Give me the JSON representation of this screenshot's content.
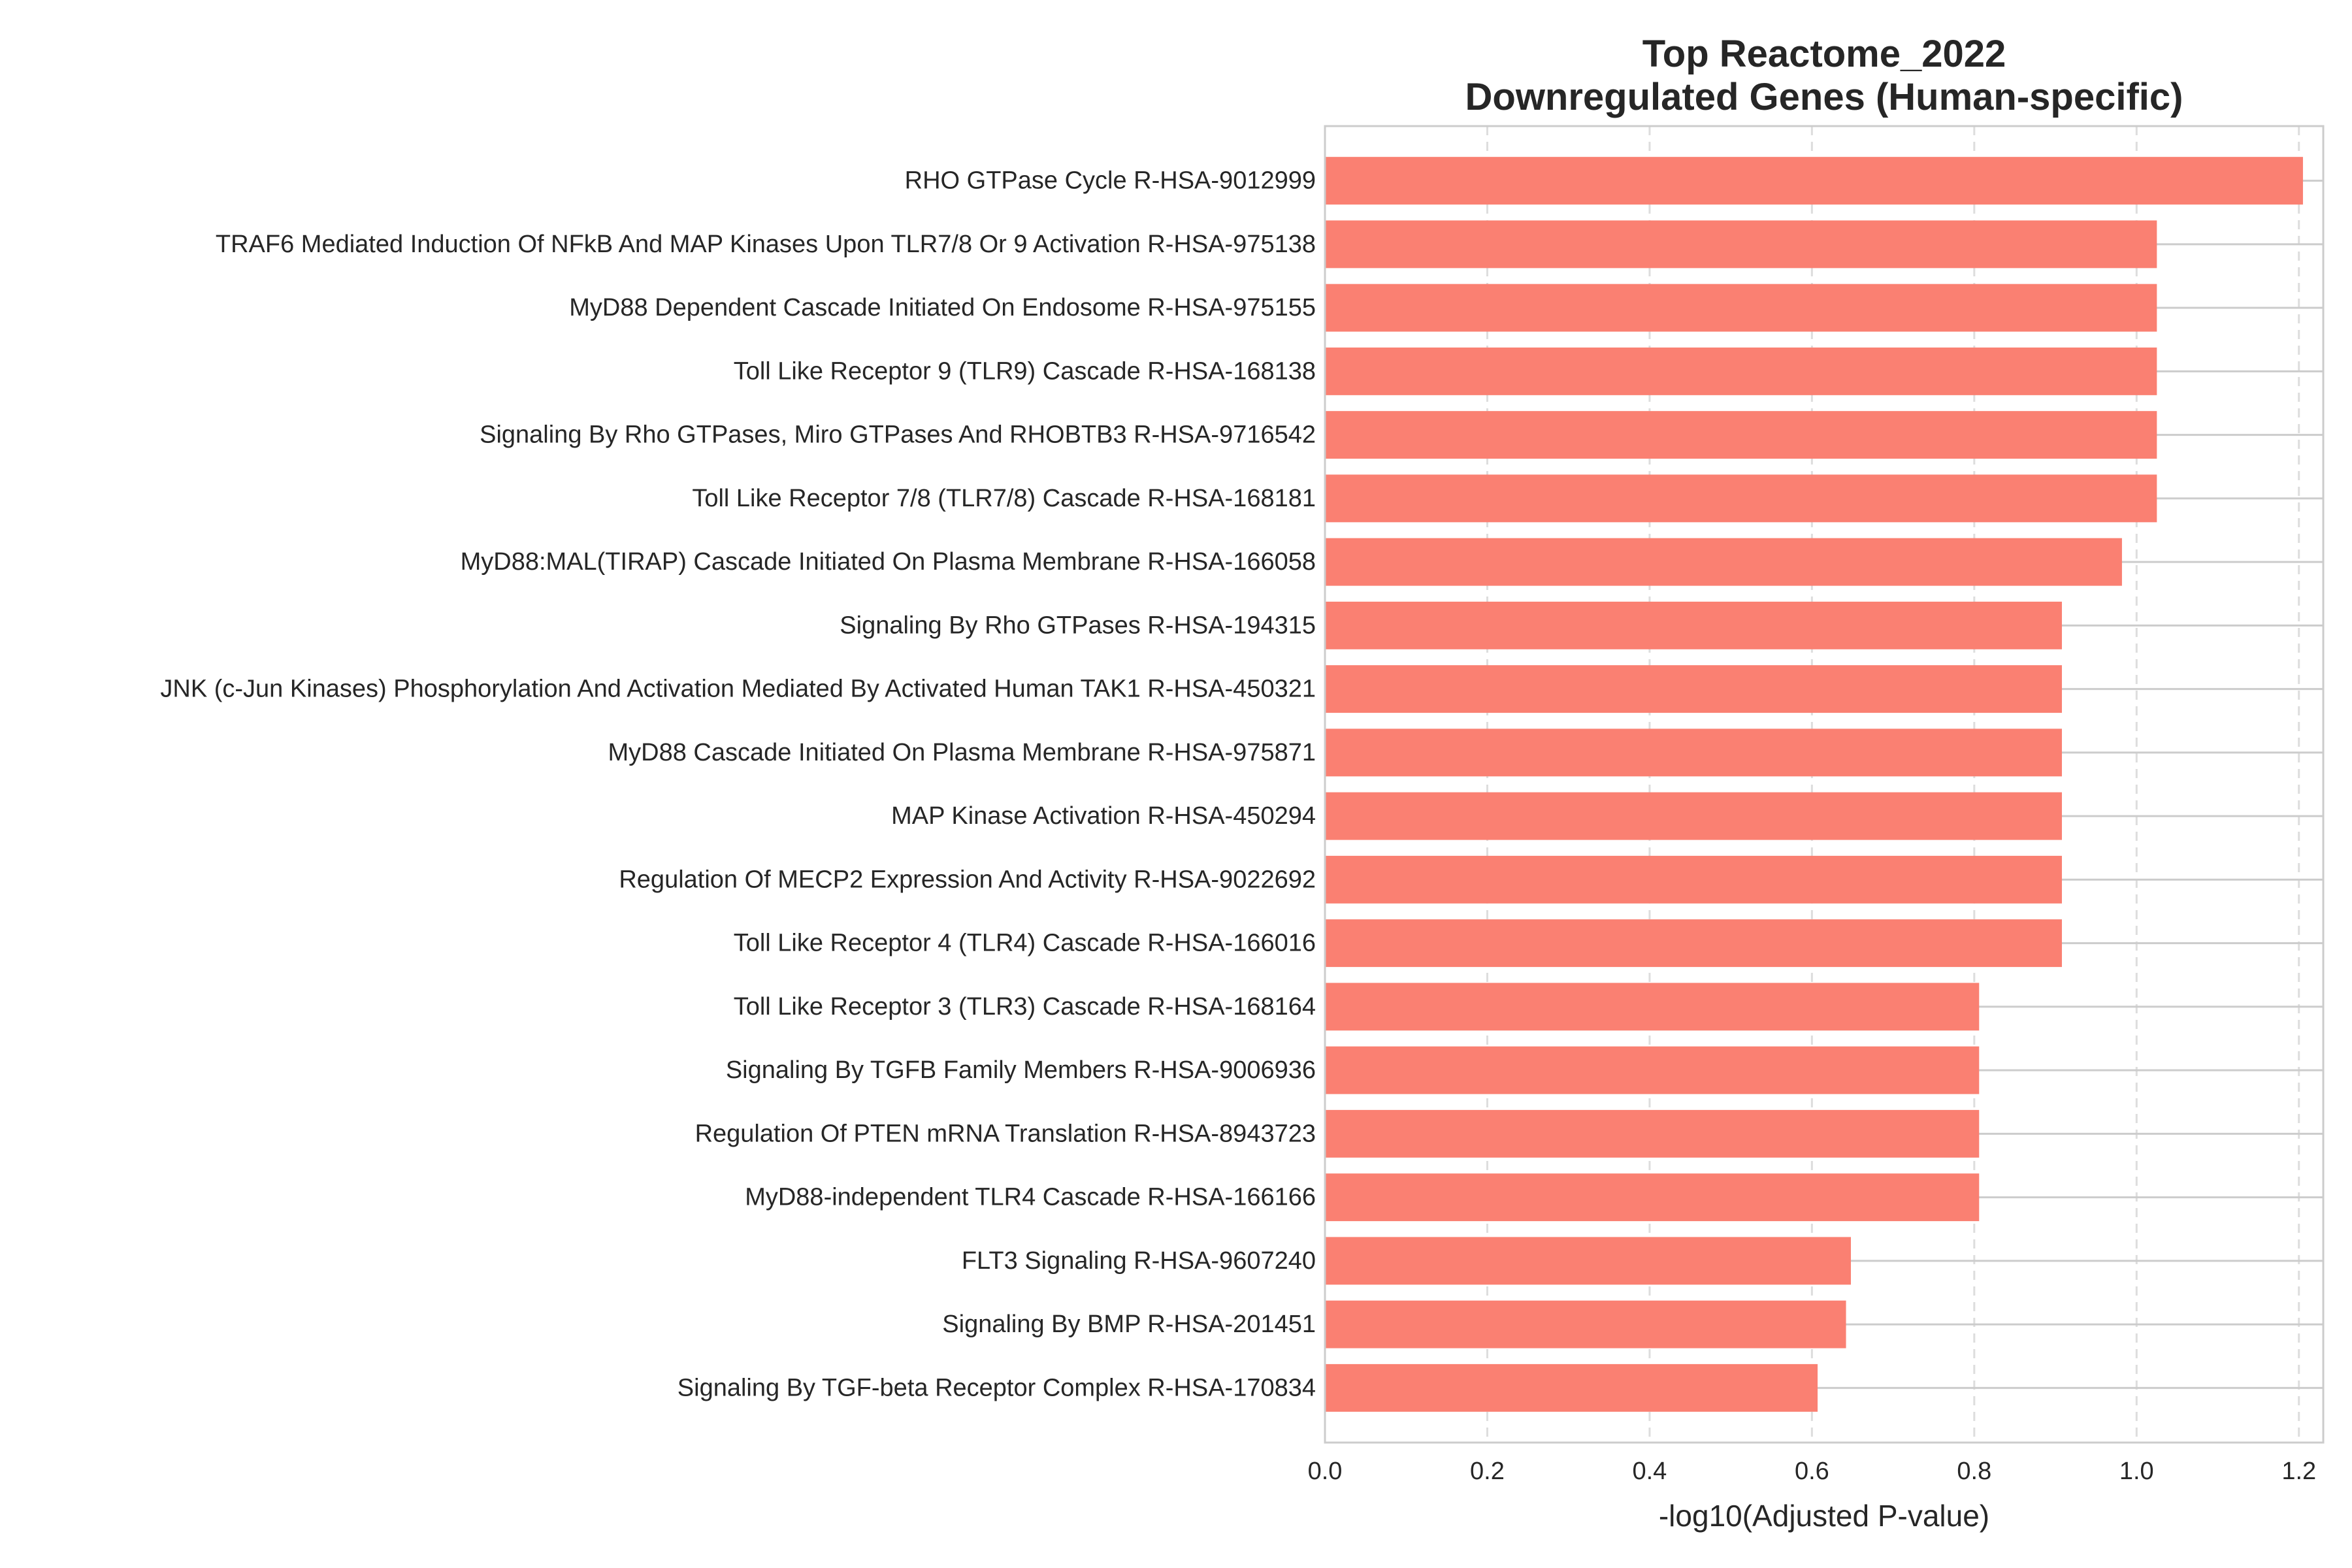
{
  "chart_data": {
    "type": "bar",
    "orientation": "horizontal",
    "title": "Top Reactome_2022\nDownregulated Genes (Human-specific)",
    "xlabel": "-log10(Adjusted P-value)",
    "ylabel": "",
    "xlim": [
      0,
      1.23
    ],
    "xticks": [
      "0.0",
      "0.2",
      "0.4",
      "0.6",
      "0.8",
      "1.0",
      "1.2"
    ],
    "grid": true,
    "bar_color": "#FA8072",
    "categories": [
      "RHO GTPase Cycle R-HSA-9012999",
      "TRAF6 Mediated Induction Of NFkB And MAP Kinases Upon TLR7/8 Or 9 Activation R-HSA-975138",
      "MyD88 Dependent Cascade Initiated On Endosome R-HSA-975155",
      "Toll Like Receptor 9 (TLR9) Cascade R-HSA-168138",
      "Signaling By Rho GTPases, Miro GTPases And RHOBTB3 R-HSA-9716542",
      "Toll Like Receptor 7/8 (TLR7/8) Cascade R-HSA-168181",
      "MyD88:MAL(TIRAP) Cascade Initiated On Plasma Membrane R-HSA-166058",
      "Signaling By Rho GTPases R-HSA-194315",
      "JNK (c-Jun Kinases) Phosphorylation And Activation Mediated By Activated Human TAK1 R-HSA-450321",
      "MyD88 Cascade Initiated On Plasma Membrane R-HSA-975871",
      "MAP Kinase Activation R-HSA-450294",
      "Regulation Of MECP2 Expression And Activity R-HSA-9022692",
      "Toll Like Receptor 4 (TLR4) Cascade R-HSA-166016",
      "Toll Like Receptor 3 (TLR3) Cascade R-HSA-168164",
      "Signaling By TGFB Family Members R-HSA-9006936",
      "Regulation Of PTEN mRNA Translation R-HSA-8943723",
      "MyD88-independent TLR4 Cascade R-HSA-166166",
      "FLT3 Signaling R-HSA-9607240",
      "Signaling By BMP R-HSA-201451",
      "Signaling By TGF-beta Receptor Complex R-HSA-170834"
    ],
    "values": [
      1.205,
      1.025,
      1.025,
      1.025,
      1.025,
      1.025,
      0.982,
      0.908,
      0.908,
      0.908,
      0.908,
      0.908,
      0.908,
      0.806,
      0.806,
      0.806,
      0.806,
      0.648,
      0.642,
      0.607
    ]
  }
}
